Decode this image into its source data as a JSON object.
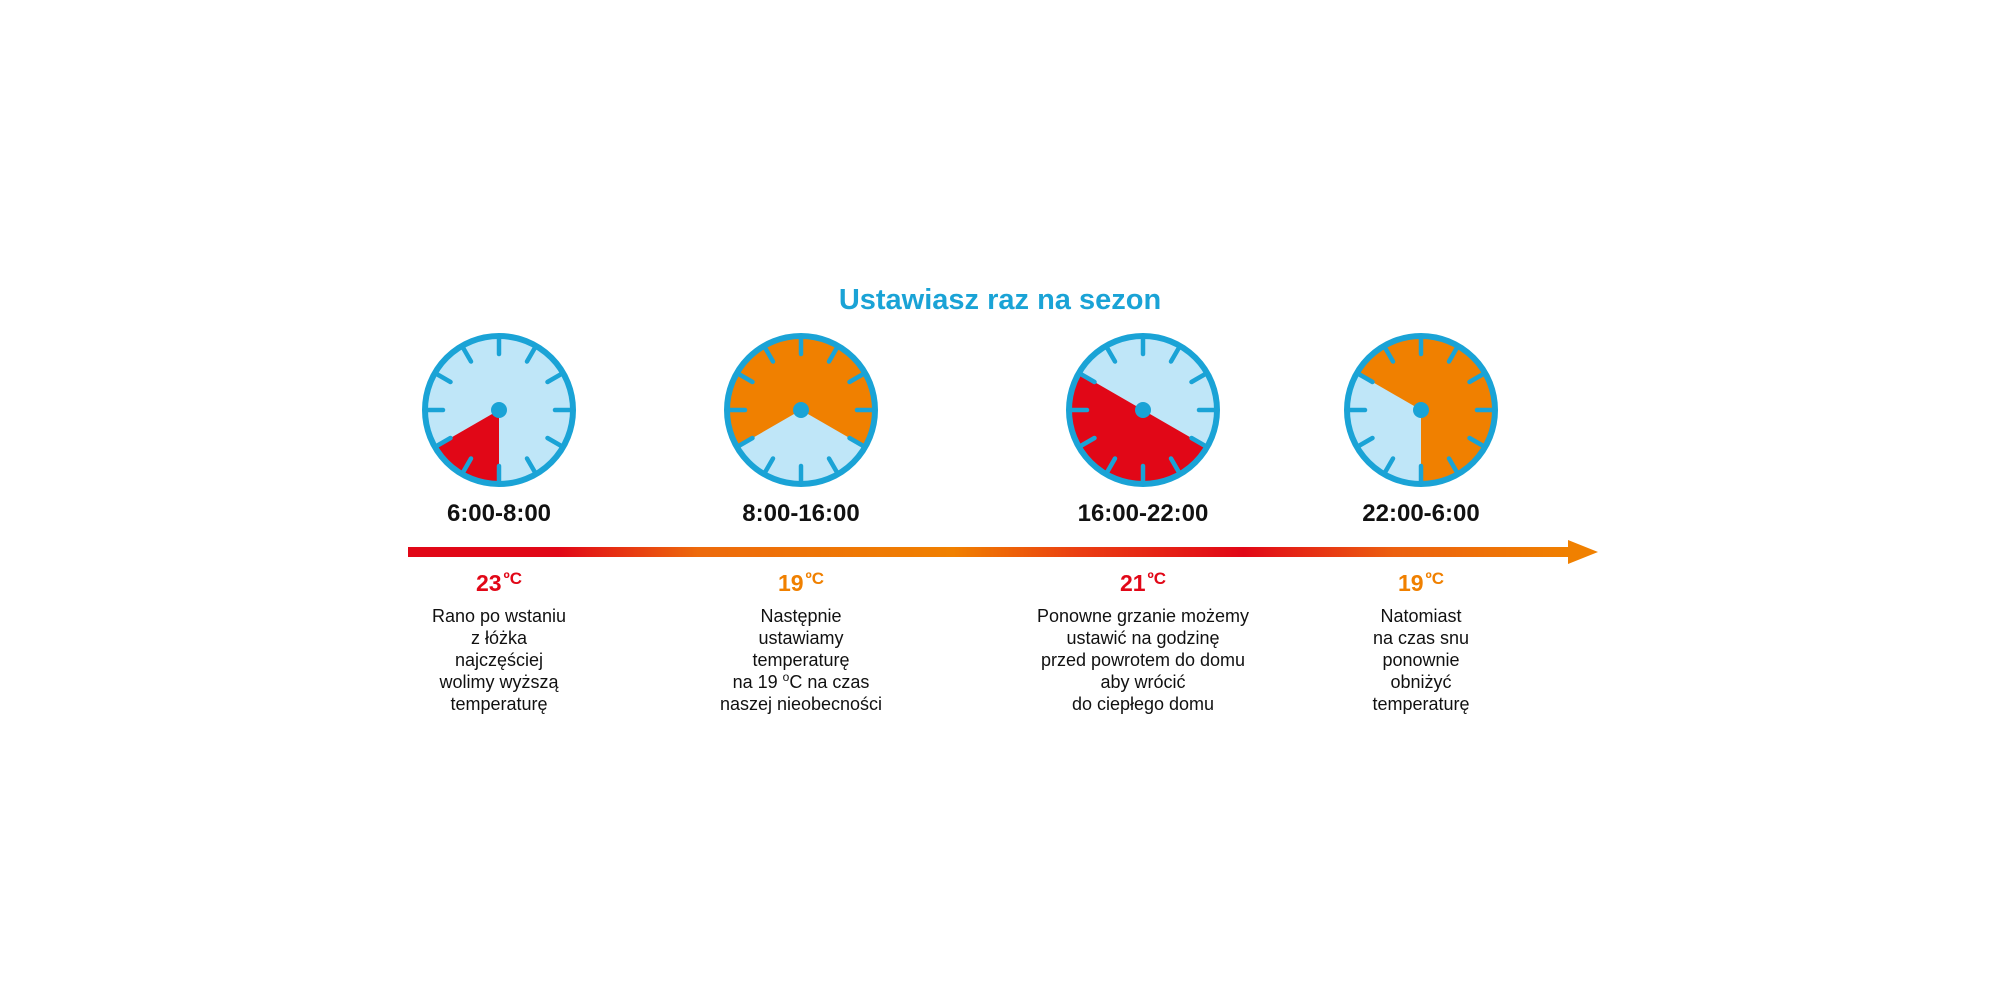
{
  "title": "Ustawiasz raz na sezon",
  "colors": {
    "accent": "#1aa3d6",
    "clock_face": "#bfe6f8",
    "clock_rim": "#1aa3d6",
    "warm": "#e10717",
    "mild": "#f08000"
  },
  "periods": [
    {
      "time": "6:00-8:00",
      "temp_value": "23",
      "temp_unit": "ºC",
      "temp_color": "#e10717",
      "sector": {
        "start_hour": 6,
        "end_hour": 8,
        "color": "#e10717"
      },
      "desc_lines": [
        "Rano po wstaniu",
        "z łóżka",
        "najczęściej",
        "wolimy wyższą",
        "temperaturę"
      ]
    },
    {
      "time": "8:00-16:00",
      "temp_value": "19",
      "temp_unit": "ºC",
      "temp_color": "#f08000",
      "sector": {
        "start_hour": 8,
        "end_hour": 16,
        "color": "#f08000"
      },
      "desc_lines": [
        "Następnie",
        "ustawiamy",
        "temperaturę"
      ],
      "desc_degree_line": {
        "pre": "na 19 ",
        "sup": "o",
        "post": "C na czas"
      },
      "desc_last_line": "naszej nieobecności"
    },
    {
      "time": "16:00-22:00",
      "temp_value": "21",
      "temp_unit": "ºC",
      "temp_color": "#e10717",
      "sector": {
        "start_hour": 16,
        "end_hour": 22,
        "color": "#e10717"
      },
      "desc_lines": [
        "Ponowne grzanie możemy",
        "ustawić na godzinę",
        "przed powrotem do domu",
        "aby wrócić",
        "do ciepłego domu"
      ]
    },
    {
      "time": "22:00-6:00",
      "temp_value": "19",
      "temp_unit": "ºC",
      "temp_color": "#f08000",
      "sector": {
        "start_hour": 22,
        "end_hour": 6,
        "color": "#f08000"
      },
      "desc_lines": [
        "Natomiast",
        "na czas snu",
        "ponownie",
        "obniżyć",
        "temperaturę"
      ]
    }
  ]
}
